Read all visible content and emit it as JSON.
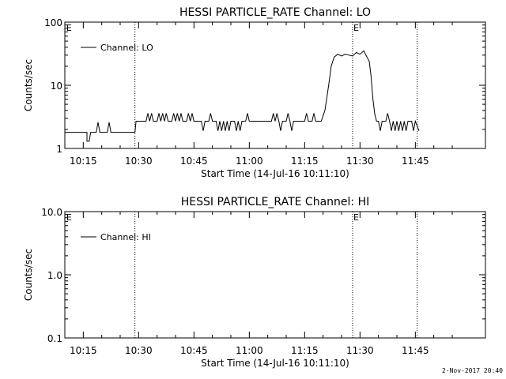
{
  "timestamp": "2-Nov-2017 20:40",
  "colors": {
    "line": "#000000",
    "background": "#ffffff"
  },
  "chart_data": [
    {
      "type": "line",
      "title": "HESSI PARTICLE_RATE Channel: LO",
      "xlabel": "Start Time (14-Jul-16 10:11:10)",
      "ylabel": "Counts/sec",
      "yscale": "log",
      "ylim": [
        1,
        100
      ],
      "xlim_minutes": [
        10,
        124
      ],
      "xticks": [
        {
          "min": 15,
          "label": "10:15"
        },
        {
          "min": 30,
          "label": "10:30"
        },
        {
          "min": 45,
          "label": "10:45"
        },
        {
          "min": 60,
          "label": "11:00"
        },
        {
          "min": 75,
          "label": "11:15"
        },
        {
          "min": 90,
          "label": "11:30"
        },
        {
          "min": 105,
          "label": "11:45"
        }
      ],
      "yticks": [
        {
          "value": 1,
          "label": "1"
        },
        {
          "value": 10,
          "label": "10"
        },
        {
          "value": 100,
          "label": "100"
        }
      ],
      "vlines_minutes": [
        29.0,
        88.0,
        105.5
      ],
      "markers": [
        {
          "min": 10.2,
          "label": "E"
        },
        {
          "min": 88.0,
          "label": "E"
        }
      ],
      "legend": {
        "placement": "top-left",
        "entries": [
          "Channel: LO"
        ]
      },
      "series": [
        {
          "name": "Channel: LO",
          "points": [
            [
              10,
              1.8
            ],
            [
              16,
              1.8
            ],
            [
              16,
              1.3
            ],
            [
              16.6,
              1.3
            ],
            [
              17,
              1.8
            ],
            [
              18.5,
              1.8
            ],
            [
              19,
              2.6
            ],
            [
              19.5,
              1.8
            ],
            [
              21.5,
              1.8
            ],
            [
              22,
              2.6
            ],
            [
              22.5,
              1.8
            ],
            [
              29,
              1.8
            ],
            [
              29.3,
              2.7
            ],
            [
              32,
              2.7
            ],
            [
              32.5,
              3.6
            ],
            [
              33,
              2.7
            ],
            [
              33.5,
              3.6
            ],
            [
              34,
              2.7
            ],
            [
              35,
              2.7
            ],
            [
              35.5,
              3.6
            ],
            [
              36,
              2.7
            ],
            [
              36.5,
              3.6
            ],
            [
              37,
              2.7
            ],
            [
              37.5,
              3.6
            ],
            [
              38,
              2.7
            ],
            [
              39,
              2.7
            ],
            [
              39.5,
              3.6
            ],
            [
              40,
              2.7
            ],
            [
              40.5,
              3.6
            ],
            [
              41,
              2.7
            ],
            [
              41.5,
              3.6
            ],
            [
              42,
              2.7
            ],
            [
              43,
              2.7
            ],
            [
              43.5,
              3.6
            ],
            [
              44,
              2.7
            ],
            [
              44.5,
              3.6
            ],
            [
              45,
              2.7
            ],
            [
              47,
              2.7
            ],
            [
              47.5,
              1.9
            ],
            [
              48,
              2.7
            ],
            [
              49,
              2.7
            ],
            [
              49.5,
              3.6
            ],
            [
              50,
              2.7
            ],
            [
              51,
              2.7
            ],
            [
              51.5,
              1.9
            ],
            [
              52,
              2.7
            ],
            [
              52.5,
              1.9
            ],
            [
              53,
              2.7
            ],
            [
              53.5,
              1.9
            ],
            [
              54,
              2.7
            ],
            [
              54.5,
              1.9
            ],
            [
              55,
              2.7
            ],
            [
              56,
              2.7
            ],
            [
              56.5,
              1.9
            ],
            [
              57,
              2.7
            ],
            [
              57.5,
              1.9
            ],
            [
              58,
              2.7
            ],
            [
              59,
              2.7
            ],
            [
              59.5,
              3.6
            ],
            [
              60,
              2.7
            ],
            [
              66,
              2.7
            ],
            [
              66.5,
              3.6
            ],
            [
              67,
              2.7
            ],
            [
              67.5,
              3.6
            ],
            [
              68,
              2.7
            ],
            [
              68.5,
              1.9
            ],
            [
              69,
              2.7
            ],
            [
              70,
              2.7
            ],
            [
              70.5,
              3.6
            ],
            [
              71,
              2.7
            ],
            [
              71.5,
              1.9
            ],
            [
              72,
              2.7
            ],
            [
              75,
              2.7
            ],
            [
              75.5,
              3.6
            ],
            [
              76,
              2.7
            ],
            [
              77,
              2.7
            ],
            [
              77.5,
              3.6
            ],
            [
              78,
              2.7
            ],
            [
              79.5,
              2.7
            ],
            [
              80.5,
              4
            ],
            [
              81.5,
              10
            ],
            [
              82.2,
              20
            ],
            [
              83,
              28
            ],
            [
              84,
              31
            ],
            [
              85,
              29
            ],
            [
              86,
              31
            ],
            [
              87,
              30
            ],
            [
              88,
              29
            ],
            [
              89,
              33
            ],
            [
              90,
              31
            ],
            [
              91,
              35
            ],
            [
              91.5,
              31
            ],
            [
              92.5,
              24
            ],
            [
              93,
              14
            ],
            [
              93.5,
              6
            ],
            [
              94,
              3.5
            ],
            [
              94.5,
              2.7
            ],
            [
              95,
              2.7
            ],
            [
              95.5,
              1.9
            ],
            [
              96,
              2.7
            ],
            [
              97,
              2.7
            ],
            [
              97.5,
              3.6
            ],
            [
              98,
              2.7
            ],
            [
              98.5,
              1.9
            ],
            [
              99,
              2.7
            ],
            [
              99.5,
              1.9
            ],
            [
              100,
              2.7
            ],
            [
              100.5,
              1.9
            ],
            [
              101,
              2.7
            ],
            [
              101.5,
              1.9
            ],
            [
              102,
              2.7
            ],
            [
              102.5,
              1.9
            ],
            [
              103,
              2.7
            ],
            [
              104,
              2.7
            ],
            [
              104.5,
              1.9
            ],
            [
              105,
              2.7
            ],
            [
              106,
              1.9
            ]
          ]
        }
      ]
    },
    {
      "type": "line",
      "title": "HESSI PARTICLE_RATE Channel: HI",
      "xlabel": "Start Time (14-Jul-16 10:11:10)",
      "ylabel": "Counts/sec",
      "yscale": "log",
      "ylim": [
        0.1,
        10
      ],
      "xlim_minutes": [
        10,
        124
      ],
      "xticks": [
        {
          "min": 15,
          "label": "10:15"
        },
        {
          "min": 30,
          "label": "10:30"
        },
        {
          "min": 45,
          "label": "10:45"
        },
        {
          "min": 60,
          "label": "11:00"
        },
        {
          "min": 75,
          "label": "11:15"
        },
        {
          "min": 90,
          "label": "11:30"
        },
        {
          "min": 105,
          "label": "11:45"
        }
      ],
      "yticks": [
        {
          "value": 0.1,
          "label": "0.1"
        },
        {
          "value": 1,
          "label": "1.0"
        },
        {
          "value": 10,
          "label": "10.0"
        }
      ],
      "vlines_minutes": [
        29.0,
        88.0,
        105.5
      ],
      "markers": [
        {
          "min": 10.2,
          "label": "E"
        },
        {
          "min": 88.0,
          "label": "E"
        }
      ],
      "legend": {
        "placement": "top-left",
        "entries": [
          "Channel: HI"
        ]
      },
      "series": [
        {
          "name": "Channel: HI",
          "points": []
        }
      ]
    }
  ]
}
